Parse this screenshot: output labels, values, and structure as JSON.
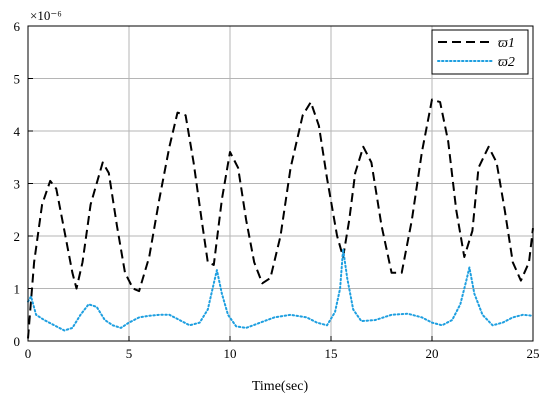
{
  "chart_data": {
    "type": "line",
    "xlabel": "Time(sec)",
    "ylabel": "",
    "y_multiplier": "×10⁻⁶",
    "xlim": [
      0,
      25
    ],
    "ylim": [
      0,
      6
    ],
    "xticks": [
      "0",
      "5",
      "10",
      "15",
      "20",
      "25"
    ],
    "yticks": [
      "0",
      "1",
      "2",
      "3",
      "4",
      "5",
      "6"
    ],
    "grid": true,
    "legend_position": "top-right",
    "series": [
      {
        "name": "ϖ1",
        "style": "dashed",
        "color": "#000000",
        "x": [
          0.0,
          0.3,
          0.7,
          1.1,
          1.4,
          1.8,
          2.2,
          2.4,
          2.7,
          3.1,
          3.7,
          4.0,
          4.4,
          4.8,
          5.2,
          5.5,
          6.0,
          6.5,
          7.0,
          7.4,
          7.8,
          8.2,
          8.6,
          8.9,
          9.2,
          9.6,
          10.0,
          10.4,
          10.8,
          11.2,
          11.6,
          12.0,
          12.5,
          13.0,
          13.6,
          14.0,
          14.4,
          14.8,
          15.3,
          15.6,
          15.9,
          16.2,
          16.6,
          17.0,
          17.5,
          18.0,
          18.5,
          19.0,
          19.5,
          20.0,
          20.4,
          20.8,
          21.2,
          21.6,
          22.0,
          22.3,
          22.8,
          23.2,
          23.6,
          24.0,
          24.4,
          24.8,
          25.0
        ],
        "y": [
          0.05,
          1.5,
          2.6,
          3.05,
          2.9,
          2.1,
          1.3,
          1.0,
          1.5,
          2.6,
          3.4,
          3.2,
          2.2,
          1.3,
          1.0,
          0.95,
          1.6,
          2.7,
          3.7,
          4.35,
          4.3,
          3.4,
          2.3,
          1.5,
          1.45,
          2.7,
          3.6,
          3.3,
          2.3,
          1.5,
          1.1,
          1.2,
          2.0,
          3.3,
          4.3,
          4.55,
          4.1,
          3.1,
          2.0,
          1.6,
          2.3,
          3.2,
          3.7,
          3.4,
          2.2,
          1.3,
          1.3,
          2.3,
          3.6,
          4.6,
          4.55,
          3.8,
          2.5,
          1.6,
          2.1,
          3.3,
          3.7,
          3.4,
          2.5,
          1.5,
          1.15,
          1.5,
          2.15
        ]
      },
      {
        "name": "ϖ2",
        "style": "dotted",
        "color": "#1e9fe0",
        "x": [
          0.0,
          0.15,
          0.4,
          0.8,
          1.3,
          1.8,
          2.2,
          2.6,
          3.0,
          3.4,
          3.8,
          4.2,
          4.6,
          5.0,
          5.5,
          6.0,
          6.5,
          7.0,
          7.5,
          8.0,
          8.5,
          8.9,
          9.2,
          9.35,
          9.6,
          9.9,
          10.3,
          10.8,
          11.5,
          12.2,
          13.0,
          13.8,
          14.3,
          14.8,
          15.2,
          15.45,
          15.6,
          15.8,
          16.1,
          16.5,
          17.2,
          18.0,
          18.8,
          19.5,
          20.0,
          20.5,
          21.0,
          21.4,
          21.7,
          21.85,
          22.1,
          22.5,
          23.0,
          23.5,
          24.0,
          24.5,
          25.0
        ],
        "y": [
          0.75,
          0.85,
          0.5,
          0.4,
          0.3,
          0.2,
          0.25,
          0.5,
          0.7,
          0.65,
          0.4,
          0.3,
          0.25,
          0.35,
          0.45,
          0.48,
          0.5,
          0.5,
          0.4,
          0.3,
          0.35,
          0.6,
          1.1,
          1.35,
          0.9,
          0.5,
          0.28,
          0.25,
          0.35,
          0.45,
          0.5,
          0.45,
          0.35,
          0.3,
          0.55,
          1.0,
          1.75,
          1.2,
          0.6,
          0.38,
          0.4,
          0.5,
          0.52,
          0.45,
          0.35,
          0.3,
          0.4,
          0.7,
          1.15,
          1.4,
          0.9,
          0.5,
          0.3,
          0.35,
          0.45,
          0.5,
          0.48
        ]
      }
    ]
  }
}
